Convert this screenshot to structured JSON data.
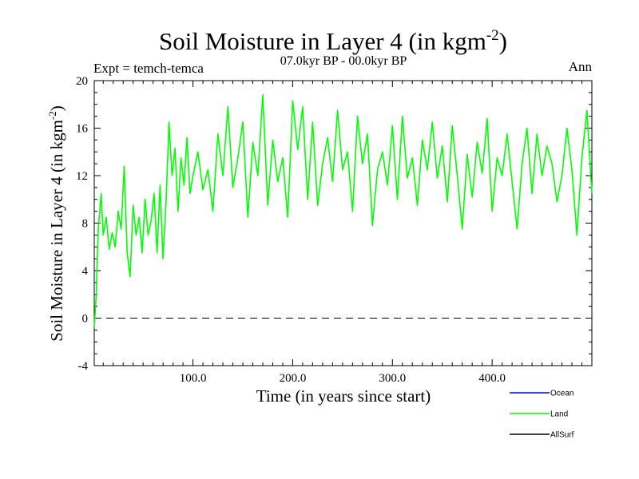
{
  "chart_data": {
    "type": "line",
    "title": "Soil Moisture in Layer 4 (in kgm",
    "title_sup": "-2",
    "title_end": ")",
    "subtitle": "07.0kyr BP - 00.0kyr BP",
    "left_note": "Expt = temch-temca",
    "right_note": "Ann",
    "xlabel": "Time (in years since start)",
    "ylabel": "Soil Moisture in Layer 4 (in kgm",
    "ylabel_sup": "-2",
    "ylabel_end": ")",
    "xlim": [
      1,
      500
    ],
    "ylim": [
      -4,
      20
    ],
    "xticks": [
      100,
      200,
      300,
      400
    ],
    "xtick_labels": [
      "100.0",
      "200.0",
      "300.0",
      "400.0"
    ],
    "yticks": [
      -4,
      0,
      4,
      8,
      12,
      16,
      20
    ],
    "ytick_labels": [
      "-4",
      "0",
      "4",
      "8",
      "12",
      "16",
      "20"
    ],
    "reference_line": 0,
    "legend": [
      {
        "name": "Ocean",
        "color": "#0000ff"
      },
      {
        "name": "Land",
        "color": "#00ff00"
      },
      {
        "name": "AllSurf",
        "color": "#000000"
      }
    ],
    "series": [
      {
        "name": "Land",
        "color": "#00ff00",
        "x": [
          1,
          3,
          5,
          8,
          10,
          13,
          16,
          19,
          22,
          25,
          28,
          31,
          34,
          37,
          40,
          43,
          46,
          49,
          52,
          55,
          58,
          61,
          64,
          67,
          70,
          73,
          76,
          79,
          82,
          85,
          88,
          91,
          94,
          97,
          100,
          105,
          110,
          115,
          120,
          125,
          130,
          135,
          140,
          145,
          150,
          155,
          160,
          165,
          170,
          175,
          180,
          185,
          190,
          195,
          200,
          205,
          210,
          215,
          220,
          225,
          230,
          235,
          240,
          245,
          250,
          255,
          260,
          265,
          270,
          275,
          280,
          285,
          290,
          295,
          300,
          305,
          310,
          315,
          320,
          325,
          330,
          335,
          340,
          345,
          350,
          355,
          360,
          365,
          370,
          375,
          380,
          385,
          390,
          395,
          400,
          405,
          410,
          415,
          420,
          425,
          430,
          435,
          440,
          445,
          450,
          455,
          460,
          465,
          470,
          475,
          480,
          485,
          490,
          495,
          500
        ],
        "values": [
          -0.8,
          2.0,
          7.5,
          10.5,
          7.0,
          8.5,
          5.8,
          7.2,
          6.0,
          9.0,
          7.5,
          12.8,
          5.5,
          3.5,
          9.5,
          7.0,
          8.5,
          5.5,
          10.0,
          7.0,
          8.2,
          10.5,
          5.5,
          11.2,
          5.0,
          9.8,
          16.5,
          12.0,
          14.3,
          9.0,
          13.5,
          11.2,
          15.2,
          10.5,
          12.0,
          14.0,
          10.8,
          12.5,
          9.0,
          15.5,
          12.0,
          17.8,
          11.0,
          13.5,
          16.5,
          8.5,
          14.8,
          12.0,
          18.8,
          9.5,
          15.0,
          11.5,
          13.5,
          8.5,
          18.3,
          14.2,
          17.8,
          10.0,
          16.5,
          9.5,
          13.0,
          15.2,
          11.5,
          17.5,
          12.5,
          14.0,
          9.0,
          17.0,
          13.0,
          15.5,
          7.8,
          12.5,
          14.0,
          11.2,
          16.2,
          10.0,
          17.0,
          11.8,
          13.5,
          9.5,
          15.0,
          12.5,
          16.5,
          11.8,
          14.5,
          9.8,
          16.2,
          12.0,
          7.5,
          13.8,
          10.2,
          14.8,
          12.2,
          16.8,
          9.0,
          13.5,
          12.0,
          15.5,
          11.5,
          7.5,
          13.0,
          16.0,
          10.5,
          15.5,
          12.0,
          14.5,
          13.0,
          9.8,
          12.0,
          16.0,
          12.5,
          7.0,
          13.5,
          17.5,
          10.5
        ]
      }
    ]
  }
}
